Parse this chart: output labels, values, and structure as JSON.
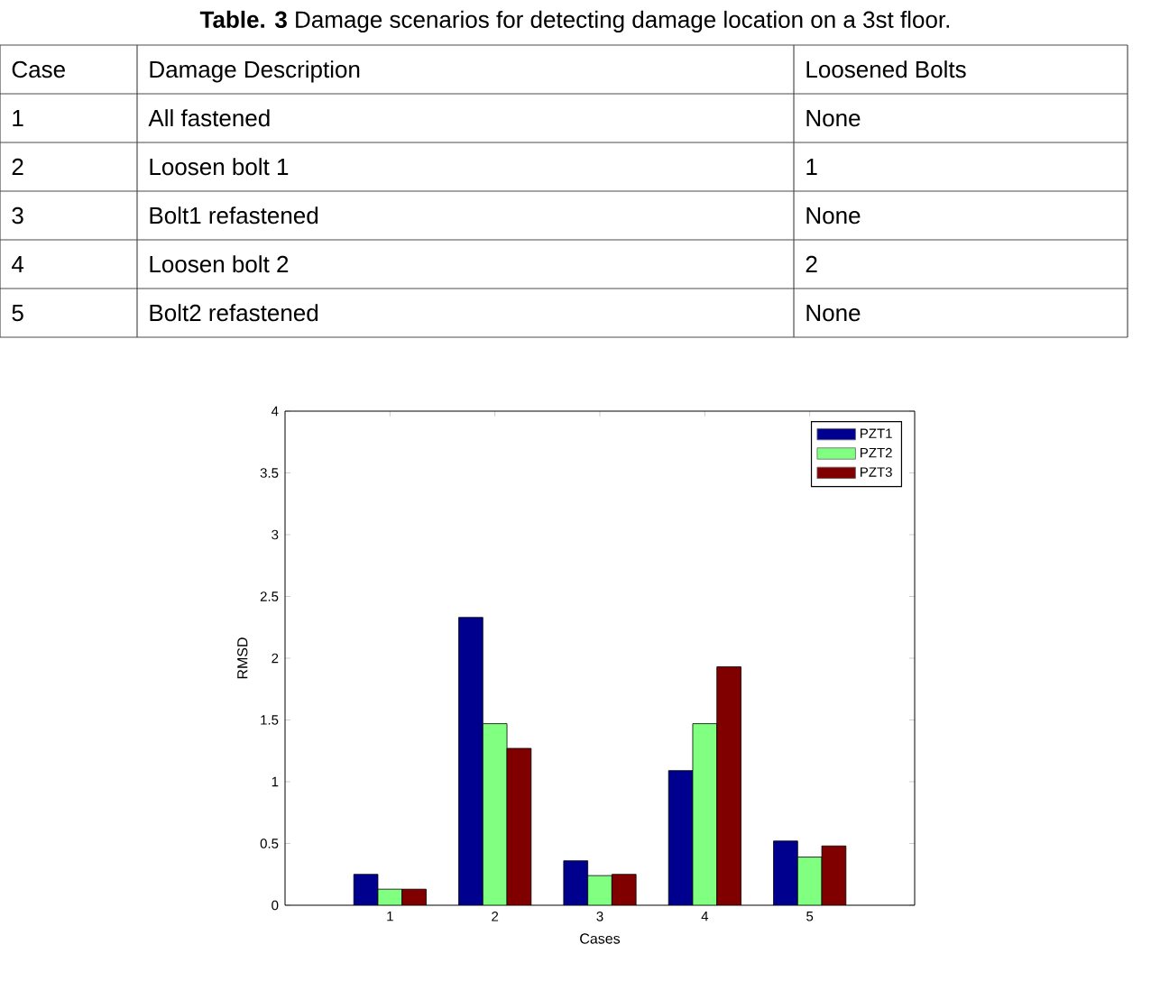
{
  "chart_data": {
    "type": "bar",
    "title": "**Table. 3** Damage scenarios for detecting damage location on a 3st floor.",
    "annotations": [
      "Case",
      "Damage Description",
      "Loosened Bolts",
      "1",
      "All fastened",
      "None",
      "2",
      "Loosen bolt 1",
      "1",
      "3",
      "Bolt1 refastened",
      "None",
      "4",
      "Loosen bolt 2",
      "2",
      "5",
      "Bolt2 refastened",
      "None"
    ],
    "xlabel": "Cases",
    "ylabel": "RMSD",
    "categories": [
      "1",
      "2",
      "3",
      "4",
      "5"
    ],
    "series": [
      {
        "name": "PZT1",
        "color": "#00008f",
        "values": [
          0.25,
          2.33,
          0.36,
          1.09,
          0.52
        ]
      },
      {
        "name": "PZT2",
        "color": "#80ff80",
        "values": [
          0.13,
          1.47,
          0.24,
          1.47,
          0.39
        ]
      },
      {
        "name": "PZT3",
        "color": "#800000",
        "values": [
          0.13,
          1.27,
          0.25,
          1.93,
          0.48
        ]
      }
    ],
    "ylim": [
      0,
      4
    ],
    "yticks": [
      0,
      0.5,
      1,
      1.5,
      2,
      2.5,
      3,
      3.5,
      4
    ],
    "legend": "top right"
  }
}
